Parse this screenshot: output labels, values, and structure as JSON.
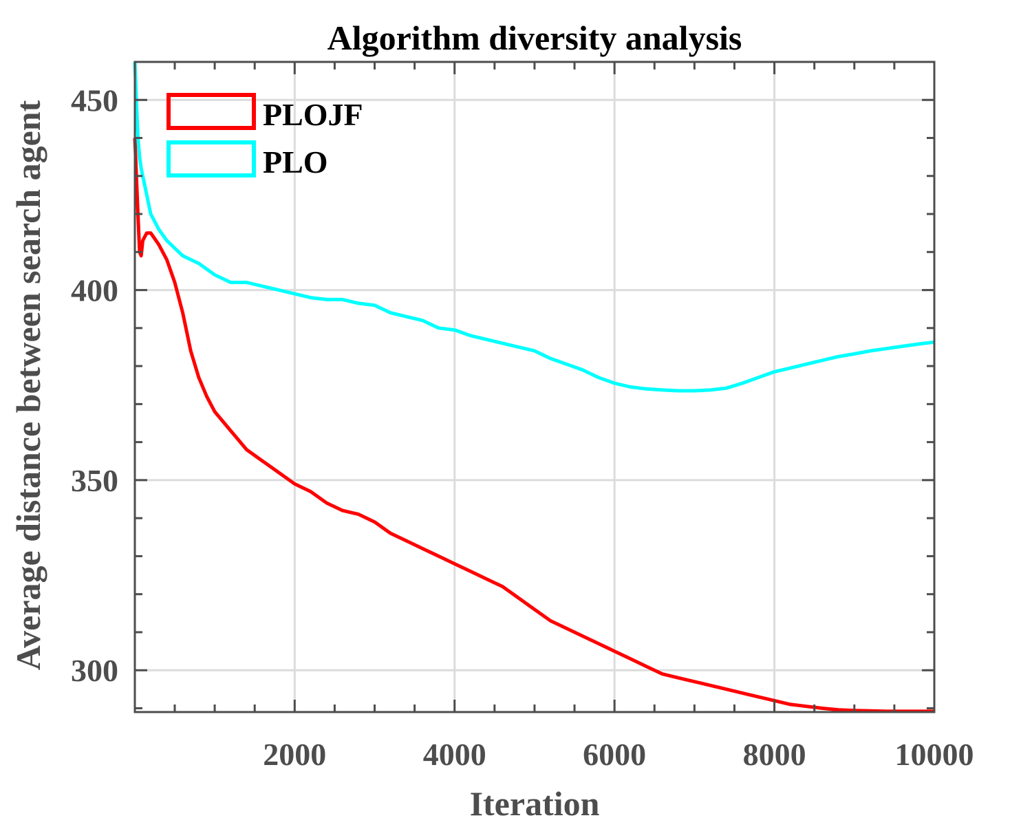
{
  "chart_data": {
    "type": "line",
    "title": "Algorithm diversity analysis",
    "xlabel": "Iteration",
    "ylabel": "Average distance between search agent",
    "xlim": [
      1,
      10000
    ],
    "ylim": [
      289,
      460
    ],
    "xticks": [
      2000,
      4000,
      6000,
      8000,
      10000
    ],
    "yticks": [
      300,
      350,
      400,
      450
    ],
    "grid": true,
    "legend_position": "top-left",
    "series": [
      {
        "name": "PLOJF",
        "color": "#ff0000",
        "x": [
          1,
          20,
          40,
          60,
          80,
          100,
          150,
          200,
          300,
          400,
          500,
          600,
          700,
          800,
          900,
          1000,
          1200,
          1400,
          1600,
          1800,
          2000,
          2200,
          2400,
          2600,
          2800,
          3000,
          3200,
          3400,
          3600,
          3800,
          4000,
          4200,
          4400,
          4600,
          4800,
          5000,
          5200,
          5400,
          5600,
          5800,
          6000,
          6200,
          6400,
          6600,
          6800,
          7000,
          7200,
          7400,
          7600,
          7800,
          8000,
          8200,
          8400,
          8600,
          8800,
          9000,
          9200,
          9400,
          9600,
          9800,
          10000
        ],
        "y": [
          440,
          430,
          420,
          410,
          409,
          413,
          415,
          415,
          412,
          408,
          402,
          394,
          384,
          377,
          372,
          368,
          363,
          358,
          355,
          352,
          349,
          347,
          344,
          342,
          341,
          339,
          336,
          334,
          332,
          330,
          328,
          326,
          324,
          322,
          319,
          316,
          313,
          311,
          309,
          307,
          305,
          303,
          301,
          299,
          298,
          297,
          296,
          295,
          294,
          293,
          292,
          291,
          290.5,
          290,
          289.6,
          289.4,
          289.3,
          289.2,
          289.2,
          289.2,
          289.2
        ]
      },
      {
        "name": "PLO",
        "color": "#00ffff",
        "x": [
          1,
          20,
          40,
          60,
          80,
          100,
          150,
          200,
          300,
          400,
          500,
          600,
          700,
          800,
          1000,
          1200,
          1400,
          1600,
          1800,
          2000,
          2200,
          2400,
          2600,
          2800,
          3000,
          3200,
          3400,
          3600,
          3800,
          4000,
          4200,
          4400,
          4600,
          4800,
          5000,
          5200,
          5400,
          5600,
          5800,
          6000,
          6200,
          6400,
          6600,
          6800,
          7000,
          7200,
          7400,
          7600,
          7800,
          8000,
          8200,
          8400,
          8600,
          8800,
          9000,
          9200,
          9400,
          9600,
          9800,
          10000
        ],
        "y": [
          460,
          450,
          440,
          435,
          432,
          430,
          425,
          420,
          416,
          413,
          411,
          409,
          408,
          407,
          404,
          402,
          402,
          401,
          400,
          399,
          398,
          397.5,
          397.5,
          396.5,
          396,
          394,
          393,
          392,
          390,
          389.5,
          388,
          387,
          386,
          385,
          384,
          382,
          380.5,
          379,
          377,
          375.5,
          374.5,
          374,
          373.7,
          373.5,
          373.5,
          373.7,
          374.2,
          375.5,
          377,
          378.5,
          379.5,
          380.5,
          381.5,
          382.5,
          383.2,
          384,
          384.6,
          385.2,
          385.8,
          386.3
        ]
      }
    ]
  }
}
